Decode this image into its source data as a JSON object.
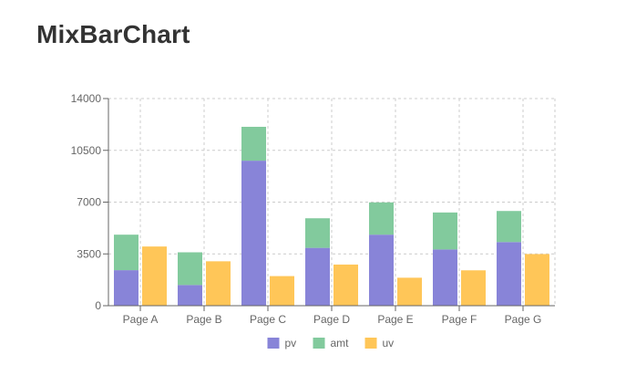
{
  "title": "MixBarChart",
  "chart_data": {
    "type": "bar",
    "title": "MixBarChart",
    "xlabel": "",
    "ylabel": "",
    "categories": [
      "Page A",
      "Page B",
      "Page C",
      "Page D",
      "Page E",
      "Page F",
      "Page G"
    ],
    "ylim": [
      0,
      14000
    ],
    "yticks": [
      0,
      3500,
      7000,
      10500,
      14000
    ],
    "grid": true,
    "legend_position": "bottom",
    "stacks": [
      [
        "pv",
        "amt"
      ],
      [
        "uv"
      ]
    ],
    "series": [
      {
        "name": "pv",
        "stack": "a",
        "color": "#8884d8",
        "values": [
          2400,
          1398,
          9800,
          3908,
          4800,
          3800,
          4300
        ]
      },
      {
        "name": "amt",
        "stack": "a",
        "color": "#82ca9d",
        "values": [
          2400,
          2210,
          2290,
          2000,
          2181,
          2500,
          2100
        ]
      },
      {
        "name": "uv",
        "stack": "b",
        "color": "#ffc658",
        "values": [
          4000,
          3000,
          2000,
          2780,
          1890,
          2390,
          3490
        ]
      }
    ]
  }
}
